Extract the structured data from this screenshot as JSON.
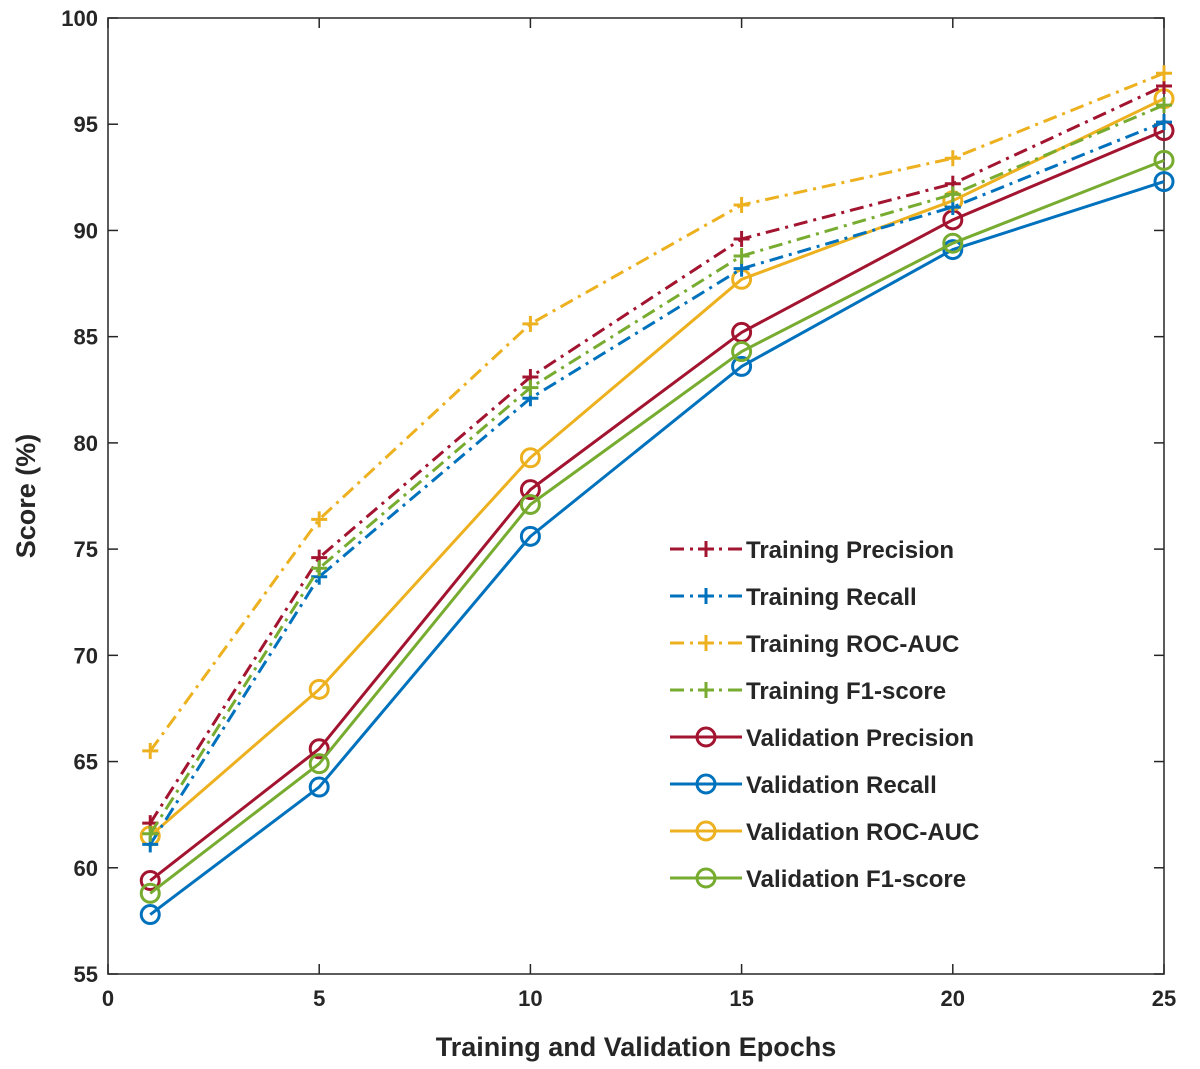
{
  "chart_data": {
    "type": "line",
    "title": "",
    "xlabel": "Training and Validation Epochs",
    "ylabel": "Score (%)",
    "xlim": [
      0,
      25
    ],
    "ylim": [
      55,
      100
    ],
    "xticks": [
      "0",
      "5",
      "10",
      "15",
      "20",
      "25"
    ],
    "yticks": [
      "55",
      "60",
      "65",
      "70",
      "75",
      "80",
      "85",
      "90",
      "95",
      "100"
    ],
    "grid": false,
    "legend_position": "bottom-right",
    "x": [
      1,
      5,
      10,
      15,
      20,
      25
    ],
    "series": [
      {
        "name": "Training Precision",
        "values": [
          62.1,
          74.6,
          83.1,
          89.6,
          92.2,
          96.8
        ],
        "color": "#A2142F",
        "line_style": "dash-dot",
        "marker": "plus"
      },
      {
        "name": "Training Recall",
        "values": [
          61.1,
          73.7,
          82.1,
          88.2,
          91.1,
          95.1
        ],
        "color": "#0072BD",
        "line_style": "dash-dot",
        "marker": "plus"
      },
      {
        "name": "Training ROC-AUC",
        "values": [
          65.5,
          76.4,
          85.6,
          91.2,
          93.4,
          97.4
        ],
        "color": "#EDB120",
        "line_style": "dash-dot",
        "marker": "plus"
      },
      {
        "name": "Training F1-score",
        "values": [
          61.6,
          74.1,
          82.6,
          88.8,
          91.7,
          95.9
        ],
        "color": "#77AC30",
        "line_style": "dash-dot",
        "marker": "plus"
      },
      {
        "name": "Validation Precision",
        "values": [
          59.4,
          65.6,
          77.8,
          85.2,
          90.5,
          94.7
        ],
        "color": "#A2142F",
        "line_style": "solid",
        "marker": "circle"
      },
      {
        "name": "Validation Recall",
        "values": [
          57.8,
          63.8,
          75.6,
          83.6,
          89.1,
          92.3
        ],
        "color": "#0072BD",
        "line_style": "solid",
        "marker": "circle"
      },
      {
        "name": "Validation ROC-AUC",
        "values": [
          61.5,
          68.4,
          79.3,
          87.7,
          91.4,
          96.2
        ],
        "color": "#EDB120",
        "line_style": "solid",
        "marker": "circle"
      },
      {
        "name": "Validation F1-score",
        "values": [
          58.8,
          64.9,
          77.1,
          84.3,
          89.4,
          93.3
        ],
        "color": "#77AC30",
        "line_style": "solid",
        "marker": "circle"
      }
    ]
  }
}
